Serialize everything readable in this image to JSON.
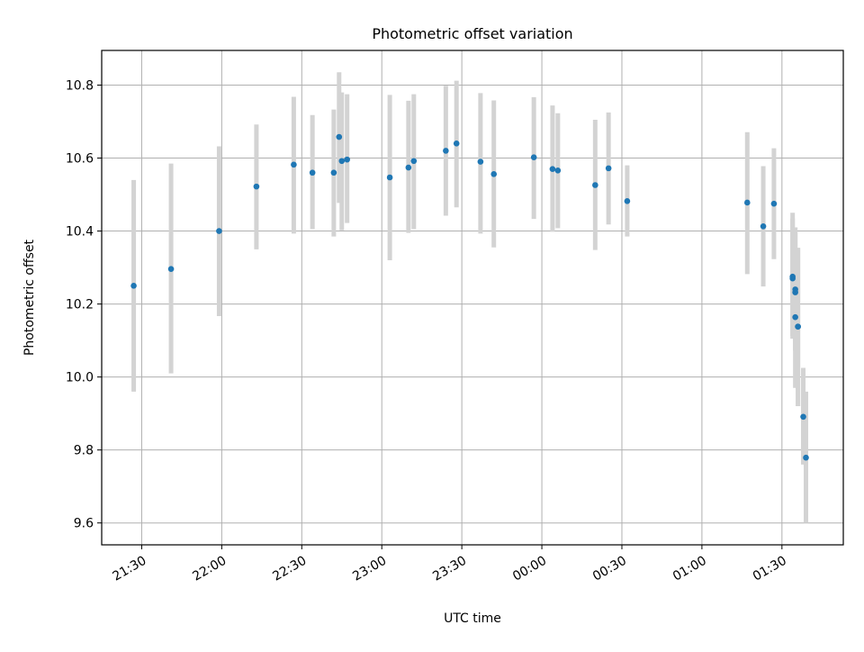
{
  "chart_data": {
    "type": "scatter",
    "title": "Photometric offset variation",
    "xlabel": "UTC time",
    "ylabel": "Photometric offset",
    "x_tick_labels": [
      "21:30",
      "22:00",
      "22:30",
      "23:00",
      "23:30",
      "00:00",
      "00:30",
      "01:00",
      "01:30"
    ],
    "x_ticks_minutes_after_2100": [
      30,
      60,
      90,
      120,
      150,
      180,
      210,
      240,
      270
    ],
    "xlim_minutes_after_2100": [
      15,
      293
    ],
    "y_ticks": [
      9.6,
      9.8,
      10.0,
      10.2,
      10.4,
      10.6,
      10.8
    ],
    "y_tick_labels": [
      "9.6",
      "9.8",
      "10.0",
      "10.2",
      "10.4",
      "10.6",
      "10.8"
    ],
    "ylim": [
      9.54,
      10.895
    ],
    "grid": true,
    "marker_color": "#1f77b4",
    "errorbar_color": "#d3d3d3",
    "series": [
      {
        "time_utc": [
          "21:27",
          "21:41",
          "21:59",
          "22:13",
          "22:27",
          "22:34",
          "22:42",
          "22:44",
          "22:45",
          "22:47",
          "23:03",
          "23:10",
          "23:12",
          "23:24",
          "23:28",
          "23:37",
          "23:42",
          "23:57",
          "00:04",
          "00:06",
          "00:20",
          "00:25",
          "00:32",
          "01:17",
          "01:23",
          "01:27",
          "01:34",
          "01:34",
          "01:35",
          "01:35",
          "01:35",
          "01:36",
          "01:36",
          "01:38",
          "01:39"
        ],
        "y": [
          10.25,
          10.296,
          10.4,
          10.522,
          10.582,
          10.56,
          10.56,
          10.658,
          10.592,
          10.596,
          10.547,
          10.574,
          10.592,
          10.62,
          10.64,
          10.59,
          10.556,
          10.602,
          10.57,
          10.566,
          10.526,
          10.572,
          10.482,
          10.478,
          10.413,
          10.475,
          10.275,
          10.27,
          10.232,
          10.24,
          10.164,
          10.138,
          10.138,
          9.891,
          9.779
        ],
        "yerr_low": [
          9.96,
          10.01,
          10.167,
          10.35,
          10.393,
          10.405,
          10.385,
          10.477,
          10.402,
          10.422,
          10.32,
          10.395,
          10.405,
          10.442,
          10.465,
          10.393,
          10.355,
          10.433,
          10.398,
          10.408,
          10.348,
          10.418,
          10.385,
          10.282,
          10.248,
          10.323,
          10.112,
          10.105,
          10.075,
          10.072,
          9.97,
          9.92,
          9.92,
          9.76,
          9.6
        ],
        "yerr_high": [
          10.54,
          10.585,
          10.632,
          10.692,
          10.768,
          10.718,
          10.733,
          10.835,
          10.78,
          10.775,
          10.773,
          10.757,
          10.775,
          10.798,
          10.812,
          10.778,
          10.758,
          10.767,
          10.744,
          10.723,
          10.705,
          10.725,
          10.58,
          10.671,
          10.578,
          10.627,
          10.45,
          10.434,
          10.41,
          10.405,
          10.354,
          10.354,
          10.354,
          10.025,
          9.96
        ]
      }
    ]
  }
}
